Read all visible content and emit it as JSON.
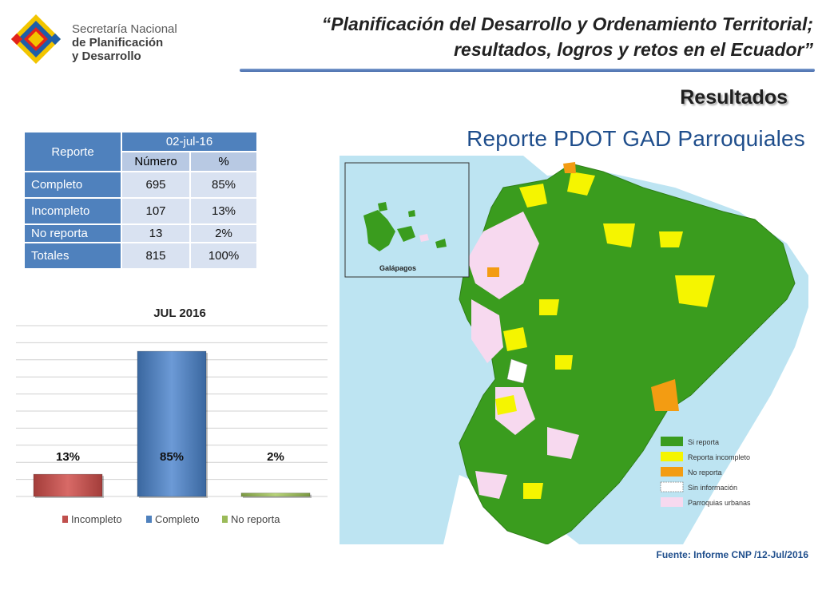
{
  "header": {
    "logo_line1": "Secretaría Nacional",
    "logo_line2": "de Planificación",
    "logo_line3": "y Desarrollo",
    "title_line1": "“Planificación del Desarrollo y Ordenamiento Territorial;",
    "title_line2": "resultados, logros y retos en el Ecuador”"
  },
  "section_title": "Resultados",
  "report_title": "Reporte PDOT GAD Parroquiales",
  "table": {
    "header_label": "Reporte",
    "date": "02-jul-16",
    "col_number": "Número",
    "col_percent": "%",
    "rows": [
      {
        "label": "Completo",
        "number": "695",
        "percent": "85%"
      },
      {
        "label": "Incompleto",
        "number": "107",
        "percent": "13%"
      },
      {
        "label": "No reporta",
        "number": "13",
        "percent": "2%"
      },
      {
        "label": "Totales",
        "number": "815",
        "percent": "100%"
      }
    ]
  },
  "chart_data": {
    "type": "bar",
    "title": "JUL 2016",
    "categories": [
      "Incompleto",
      "Completo",
      "No reporta"
    ],
    "values": [
      13,
      85,
      2
    ],
    "data_labels": [
      "13%",
      "85%",
      "2%"
    ],
    "colors": [
      "#c0504d",
      "#4f81bd",
      "#9bbb59"
    ],
    "ylim": [
      0,
      100
    ],
    "grid": true,
    "legend": "bottom"
  },
  "map": {
    "inset_label": "Galápagos",
    "legend": [
      {
        "label": "Si reporta",
        "color": "#3a9c1e"
      },
      {
        "label": "Reporta incompleto",
        "color": "#f5f500"
      },
      {
        "label": "No reporta",
        "color": "#f39c12"
      },
      {
        "label": "Sin información",
        "color": "#ffffff"
      },
      {
        "label": "Parroquias urbanas",
        "color": "#f7d9ef"
      }
    ]
  },
  "source": "Fuente: Informe CNP /12-Jul/2016"
}
